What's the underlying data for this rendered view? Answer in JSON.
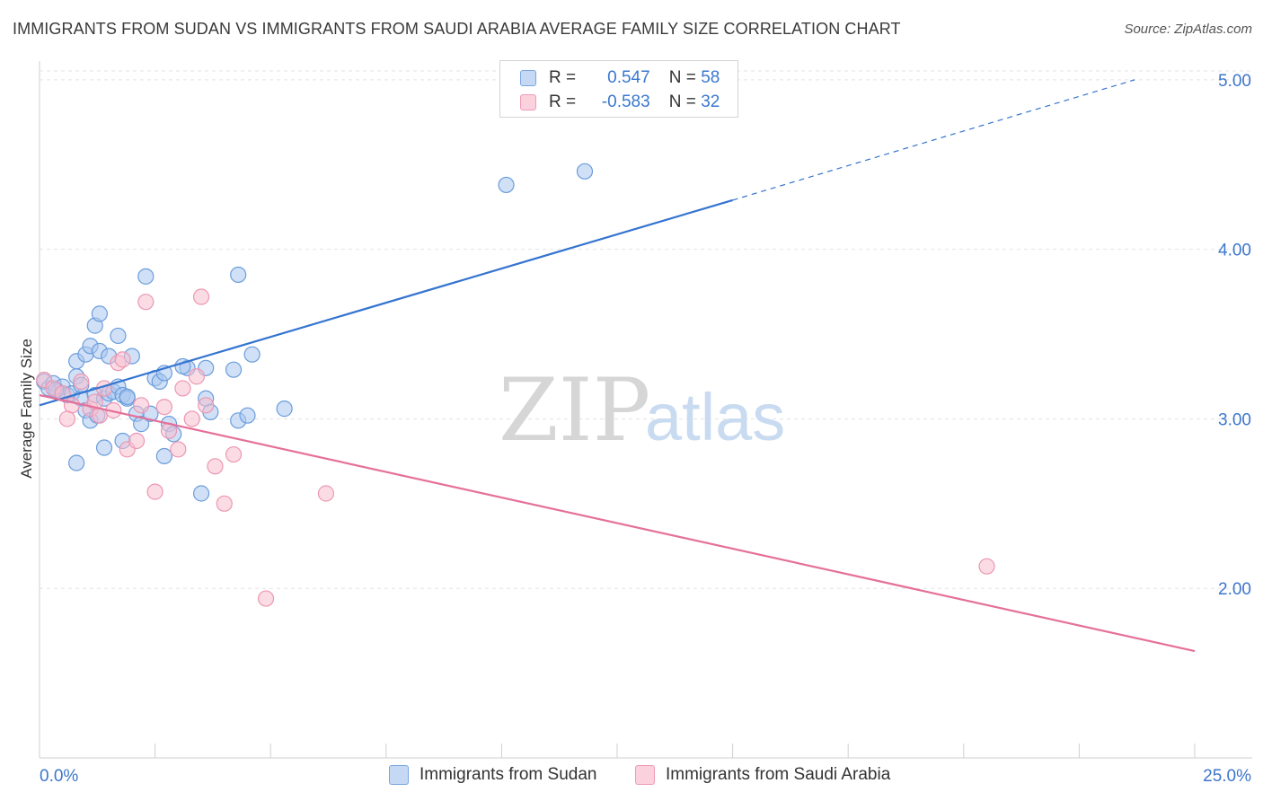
{
  "title": "IMMIGRANTS FROM SUDAN VS IMMIGRANTS FROM SAUDI ARABIA AVERAGE FAMILY SIZE CORRELATION CHART",
  "source": "Source: ZipAtlas.com",
  "watermark": {
    "zip": "ZIP",
    "atlas": "atlas"
  },
  "legend": {
    "rows": [
      {
        "r_label": "R =",
        "r_value": "0.547",
        "n_label": "N =",
        "n_value": "58"
      },
      {
        "r_label": "R =",
        "r_value": "-0.583",
        "n_label": "N =",
        "n_value": "32"
      }
    ],
    "bottom": [
      "Immigrants from Sudan",
      "Immigrants from Saudi Arabia"
    ]
  },
  "colors": {
    "sudan_fill": "#a9c7ef",
    "sudan_stroke": "#6b9ddc",
    "sudan_line": "#3474d0",
    "saudi_fill": "#f8bfd0",
    "saudi_stroke": "#ec97b2",
    "saudi_line": "#e5709a",
    "tick_label": "#3d76cc",
    "grid": "#e3e3e3"
  },
  "chart_data": {
    "type": "scatter",
    "title": "IMMIGRANTS FROM SUDAN VS IMMIGRANTS FROM SAUDI ARABIA AVERAGE FAMILY SIZE CORRELATION CHART",
    "xlabel": "",
    "ylabel": "Average Family Size",
    "xlim": [
      0,
      25
    ],
    "ylim": [
      1.0,
      5.1
    ],
    "x_tick_labels": [
      "0.0%",
      "25.0%"
    ],
    "y_ticks": [
      2.0,
      3.0,
      4.0,
      5.0
    ],
    "y_tick_labels": [
      "2.00",
      "3.00",
      "4.00",
      "5.00"
    ],
    "grid": true,
    "legend_position": "top-center",
    "series": [
      {
        "name": "Immigrants from Sudan",
        "trend": {
          "x": [
            0,
            15
          ],
          "y": [
            3.08,
            4.29
          ],
          "extension_to": [
            23.7,
            5.0
          ]
        },
        "points": [
          [
            0.1,
            3.22
          ],
          [
            0.2,
            3.18
          ],
          [
            0.3,
            3.21
          ],
          [
            0.4,
            3.16
          ],
          [
            0.5,
            3.19
          ],
          [
            0.6,
            3.14
          ],
          [
            0.7,
            3.15
          ],
          [
            0.8,
            3.34
          ],
          [
            0.8,
            3.25
          ],
          [
            0.9,
            3.12
          ],
          [
            0.8,
            2.74
          ],
          [
            0.9,
            3.2
          ],
          [
            1.0,
            3.38
          ],
          [
            1.1,
            3.43
          ],
          [
            1.0,
            3.05
          ],
          [
            1.1,
            2.99
          ],
          [
            1.2,
            3.55
          ],
          [
            1.2,
            3.14
          ],
          [
            1.3,
            3.62
          ],
          [
            1.3,
            3.4
          ],
          [
            1.4,
            3.12
          ],
          [
            1.5,
            3.37
          ],
          [
            1.5,
            3.15
          ],
          [
            1.4,
            2.83
          ],
          [
            1.6,
            3.16
          ],
          [
            1.7,
            3.19
          ],
          [
            1.7,
            3.49
          ],
          [
            1.8,
            3.14
          ],
          [
            1.8,
            2.87
          ],
          [
            1.9,
            3.12
          ],
          [
            2.0,
            3.37
          ],
          [
            1.9,
            3.13
          ],
          [
            2.1,
            3.03
          ],
          [
            2.2,
            2.97
          ],
          [
            2.3,
            3.84
          ],
          [
            2.4,
            3.03
          ],
          [
            2.5,
            3.24
          ],
          [
            2.6,
            3.22
          ],
          [
            2.7,
            3.27
          ],
          [
            2.8,
            2.97
          ],
          [
            2.9,
            2.91
          ],
          [
            2.7,
            2.78
          ],
          [
            3.2,
            3.3
          ],
          [
            3.1,
            3.31
          ],
          [
            3.6,
            3.12
          ],
          [
            3.7,
            3.04
          ],
          [
            3.5,
            2.56
          ],
          [
            3.6,
            3.3
          ],
          [
            4.2,
            3.29
          ],
          [
            4.3,
            3.85
          ],
          [
            4.3,
            2.99
          ],
          [
            4.5,
            3.02
          ],
          [
            4.6,
            3.38
          ],
          [
            5.3,
            3.06
          ],
          [
            10.1,
            4.38
          ],
          [
            11.8,
            4.46
          ],
          [
            0.35,
            3.17
          ],
          [
            1.25,
            3.02
          ]
        ]
      },
      {
        "name": "Immigrants from Saudi Arabia",
        "trend": {
          "x": [
            0,
            25
          ],
          "y": [
            3.14,
            1.63
          ]
        },
        "points": [
          [
            0.1,
            3.23
          ],
          [
            0.3,
            3.18
          ],
          [
            0.5,
            3.15
          ],
          [
            0.7,
            3.08
          ],
          [
            0.9,
            3.22
          ],
          [
            1.1,
            3.06
          ],
          [
            1.2,
            3.1
          ],
          [
            1.3,
            3.02
          ],
          [
            1.4,
            3.18
          ],
          [
            1.6,
            3.05
          ],
          [
            1.7,
            3.33
          ],
          [
            1.8,
            3.35
          ],
          [
            1.9,
            2.82
          ],
          [
            2.1,
            2.87
          ],
          [
            2.2,
            3.08
          ],
          [
            2.3,
            3.69
          ],
          [
            2.5,
            2.57
          ],
          [
            2.7,
            3.07
          ],
          [
            2.8,
            2.93
          ],
          [
            3.0,
            2.82
          ],
          [
            3.1,
            3.18
          ],
          [
            3.3,
            3.0
          ],
          [
            3.4,
            3.25
          ],
          [
            3.5,
            3.72
          ],
          [
            3.6,
            3.08
          ],
          [
            3.8,
            2.72
          ],
          [
            4.0,
            2.5
          ],
          [
            4.2,
            2.79
          ],
          [
            4.9,
            1.94
          ],
          [
            6.2,
            2.56
          ],
          [
            20.5,
            2.13
          ],
          [
            0.6,
            3.0
          ]
        ]
      }
    ]
  }
}
